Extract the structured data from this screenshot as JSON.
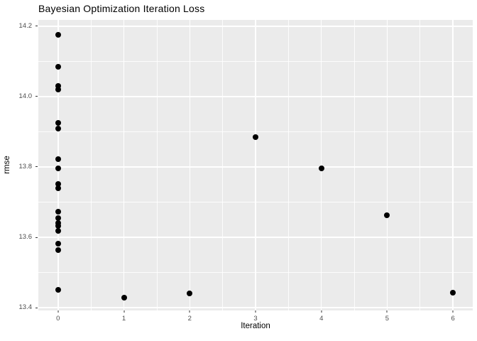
{
  "title": "Bayesian Optimization Iteration Loss",
  "colors": {
    "panel_background": "#EBEBEB",
    "gridline": "#FFFFFF",
    "point": "#000000",
    "tick_label": "#4D4D4D",
    "tick_mark": "#333333",
    "title_text": "#000000"
  },
  "chart_data": {
    "type": "scatter",
    "title": "Bayesian Optimization Iteration Loss",
    "xlabel": "Iteration",
    "ylabel": "rmse",
    "xlim": [
      -0.3,
      6.3
    ],
    "ylim": [
      13.392,
      14.218
    ],
    "grid": true,
    "legend_position": "none",
    "x_major_ticks": [
      {
        "value": 0,
        "label": "0"
      },
      {
        "value": 1,
        "label": "1"
      },
      {
        "value": 2,
        "label": "2"
      },
      {
        "value": 3,
        "label": "3"
      },
      {
        "value": 4,
        "label": "4"
      },
      {
        "value": 5,
        "label": "5"
      },
      {
        "value": 6,
        "label": "6"
      }
    ],
    "x_minor_ticks": [
      0.5,
      1.5,
      2.5,
      3.5,
      4.5,
      5.5
    ],
    "y_major_ticks": [
      {
        "value": 13.4,
        "label": "13.4"
      },
      {
        "value": 13.6,
        "label": "13.6"
      },
      {
        "value": 13.8,
        "label": "13.8"
      },
      {
        "value": 14.0,
        "label": "14.0"
      },
      {
        "value": 14.2,
        "label": "14.2"
      }
    ],
    "y_minor_ticks": [
      13.5,
      13.7,
      13.9,
      14.1
    ],
    "points": [
      {
        "x": 0,
        "y": 14.175
      },
      {
        "x": 0,
        "y": 14.085
      },
      {
        "x": 0,
        "y": 14.03
      },
      {
        "x": 0,
        "y": 14.02
      },
      {
        "x": 0,
        "y": 13.925
      },
      {
        "x": 0,
        "y": 13.91
      },
      {
        "x": 0,
        "y": 13.822
      },
      {
        "x": 0,
        "y": 13.796
      },
      {
        "x": 0,
        "y": 13.751
      },
      {
        "x": 0,
        "y": 13.739
      },
      {
        "x": 0,
        "y": 13.673
      },
      {
        "x": 0,
        "y": 13.655
      },
      {
        "x": 0,
        "y": 13.641
      },
      {
        "x": 0,
        "y": 13.632
      },
      {
        "x": 0,
        "y": 13.618
      },
      {
        "x": 0,
        "y": 13.581
      },
      {
        "x": 0,
        "y": 13.564
      },
      {
        "x": 0,
        "y": 13.45
      },
      {
        "x": 1,
        "y": 13.428
      },
      {
        "x": 2,
        "y": 13.44
      },
      {
        "x": 3,
        "y": 13.885
      },
      {
        "x": 4,
        "y": 13.795
      },
      {
        "x": 5,
        "y": 13.663
      },
      {
        "x": 6,
        "y": 13.443
      }
    ]
  }
}
